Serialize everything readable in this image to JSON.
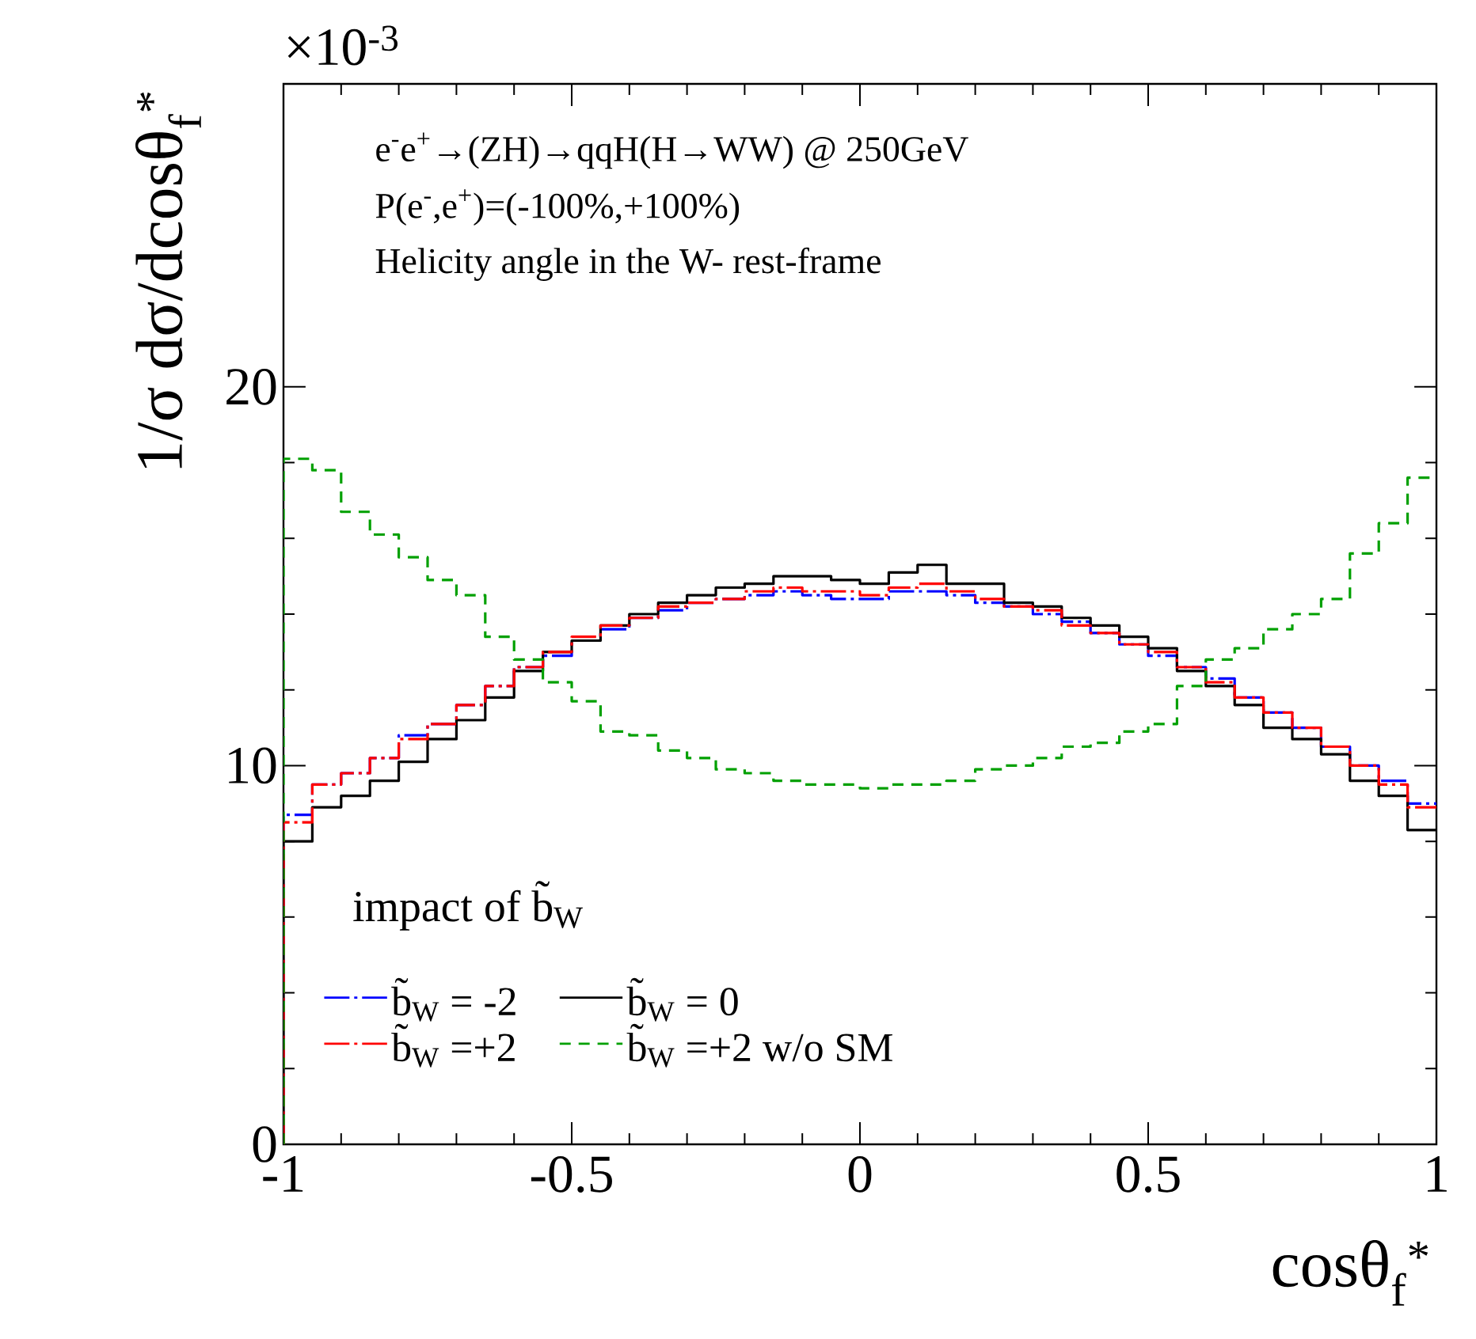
{
  "chart_data": {
    "type": "histogram",
    "xlabel": "cosθ$_{f}$$^{*}$",
    "ylabel": "1/σ dσ/dcosθ$_{f}$$^{*}$",
    "legend_title": "impact of b̃$_{W}$",
    "annotations": [
      "×10$^{-3}$",
      "e$^{-}$e$^{+}$→(ZH)→qqH(H→WW) @ 250GeV",
      "P(e$^{-}$,e$^{+}$)=(-100%,+100%)",
      "Helicity angle in the W- rest-frame"
    ],
    "xlim": [
      -1,
      1
    ],
    "ylim": [
      0,
      28
    ],
    "xticks": [
      -1,
      -0.5,
      0,
      0.5,
      1
    ],
    "yticks": [
      0,
      10,
      20
    ],
    "legend": "bottom left",
    "bins": [
      -1,
      -0.95,
      -0.9,
      -0.85,
      -0.8,
      -0.75,
      -0.7,
      -0.65,
      -0.6,
      -0.55,
      -0.5,
      -0.45,
      -0.4,
      -0.35,
      -0.3,
      -0.25,
      -0.2,
      -0.15,
      -0.1,
      -0.05,
      0,
      0.05,
      0.1,
      0.15,
      0.2,
      0.25,
      0.3,
      0.35,
      0.4,
      0.45,
      0.5,
      0.55,
      0.6,
      0.65,
      0.7,
      0.75,
      0.8,
      0.85,
      0.9,
      0.95,
      1
    ],
    "series": [
      {
        "name": "b̃$_{W}$ = -2",
        "color": "#0000ff",
        "line_style": "dashdotted",
        "values": [
          8.7,
          9.5,
          9.8,
          10.2,
          10.8,
          11.1,
          11.6,
          12.1,
          12.6,
          12.9,
          13.3,
          13.6,
          13.9,
          14.1,
          14.3,
          14.4,
          14.5,
          14.6,
          14.5,
          14.4,
          14.4,
          14.6,
          14.6,
          14.5,
          14.3,
          14.2,
          14.0,
          13.8,
          13.5,
          13.2,
          12.9,
          12.6,
          12.3,
          11.8,
          11.4,
          11.0,
          10.5,
          10.0,
          9.6,
          9.0
        ]
      },
      {
        "name": "b̃$_{W}$ = 0",
        "color": "#000000",
        "line_style": "solid",
        "values": [
          8.0,
          8.9,
          9.2,
          9.6,
          10.1,
          10.7,
          11.2,
          11.8,
          12.5,
          13.0,
          13.3,
          13.7,
          14.0,
          14.3,
          14.5,
          14.7,
          14.8,
          15.0,
          15.0,
          14.9,
          14.8,
          15.1,
          15.3,
          14.8,
          14.8,
          14.3,
          14.2,
          13.9,
          13.7,
          13.4,
          13.1,
          12.5,
          12.1,
          11.6,
          11.0,
          10.7,
          10.3,
          9.6,
          9.2,
          8.3
        ]
      },
      {
        "name": "b̃$_{W}$ =+2",
        "color": "#ff0000",
        "line_style": "dashdotted",
        "values": [
          8.5,
          9.5,
          9.8,
          10.2,
          10.7,
          11.1,
          11.6,
          12.1,
          12.6,
          13.0,
          13.4,
          13.7,
          13.9,
          14.2,
          14.3,
          14.4,
          14.6,
          14.7,
          14.6,
          14.6,
          14.5,
          14.7,
          14.8,
          14.6,
          14.4,
          14.2,
          14.1,
          13.7,
          13.5,
          13.2,
          13.0,
          12.6,
          12.2,
          11.8,
          11.4,
          11.0,
          10.5,
          10.0,
          9.5,
          8.9
        ]
      },
      {
        "name": "b̃$_{W}$ =+2 w/o SM",
        "color": "#00a000",
        "line_style": "dashed",
        "values": [
          18.1,
          17.8,
          16.7,
          16.1,
          15.5,
          14.9,
          14.5,
          13.4,
          12.8,
          12.2,
          11.7,
          10.9,
          10.8,
          10.4,
          10.2,
          9.9,
          9.8,
          9.6,
          9.5,
          9.5,
          9.4,
          9.5,
          9.5,
          9.6,
          9.9,
          10.0,
          10.2,
          10.5,
          10.6,
          10.9,
          11.1,
          12.1,
          12.8,
          13.1,
          13.6,
          14.0,
          14.4,
          15.6,
          16.4,
          17.6
        ]
      }
    ]
  }
}
